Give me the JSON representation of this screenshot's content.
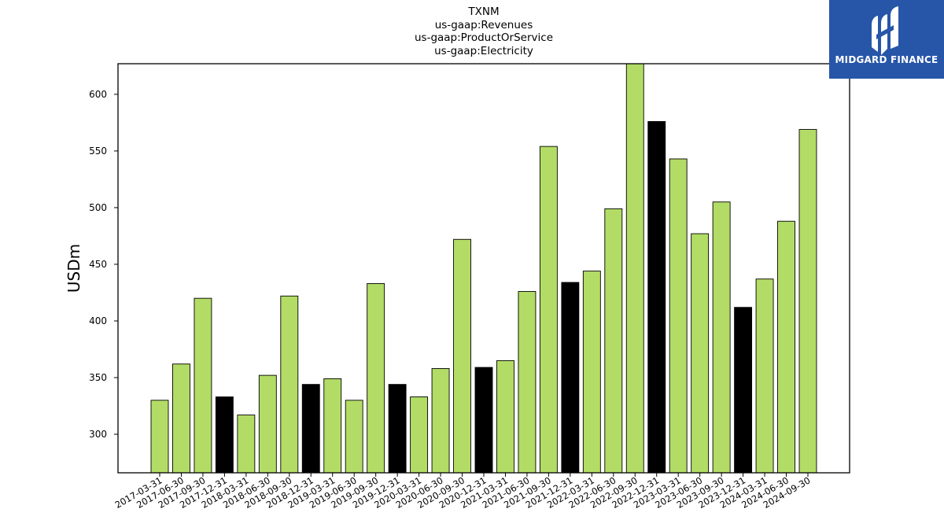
{
  "chart_data": {
    "type": "bar",
    "title": [
      "TXNM",
      "us-gaap:Revenues",
      "us-gaap:ProductOrService",
      "us-gaap:Electricity"
    ],
    "ylabel": "USDm",
    "xlabel": "",
    "ylim": [
      266,
      627
    ],
    "yticks": [
      300,
      350,
      400,
      450,
      500,
      550,
      600
    ],
    "grid": false,
    "colors": {
      "quarter": "#b2dc66",
      "fiscal_year_end": "#000000",
      "edge": "#000000"
    },
    "categories": [
      "2017-03-31",
      "2017-06-30",
      "2017-09-30",
      "2017-12-31",
      "2018-03-31",
      "2018-06-30",
      "2018-09-30",
      "2018-12-31",
      "2019-03-31",
      "2019-06-30",
      "2019-09-30",
      "2019-12-31",
      "2020-03-31",
      "2020-06-30",
      "2020-09-30",
      "2020-12-31",
      "2021-03-31",
      "2021-06-30",
      "2021-09-30",
      "2021-12-31",
      "2022-03-31",
      "2022-06-30",
      "2022-09-30",
      "2022-12-31",
      "2023-03-31",
      "2023-06-30",
      "2023-09-30",
      "2023-12-31",
      "2024-03-31",
      "2024-06-30",
      "2024-09-30"
    ],
    "values": [
      330,
      362,
      420,
      333,
      317,
      352,
      422,
      344,
      349,
      330,
      433,
      344,
      333,
      358,
      472,
      359,
      365,
      426,
      554,
      434,
      444,
      499,
      630,
      576,
      543,
      477,
      505,
      412,
      437,
      488,
      569
    ],
    "highlight": [
      false,
      false,
      false,
      true,
      false,
      false,
      false,
      true,
      false,
      false,
      false,
      true,
      false,
      false,
      false,
      true,
      false,
      false,
      false,
      true,
      false,
      false,
      false,
      true,
      false,
      false,
      false,
      true,
      false,
      false,
      false
    ]
  },
  "logo": {
    "text": "MIDGARD FINANCE",
    "icon": "midgard-logo-icon",
    "background": "#2756a8"
  }
}
